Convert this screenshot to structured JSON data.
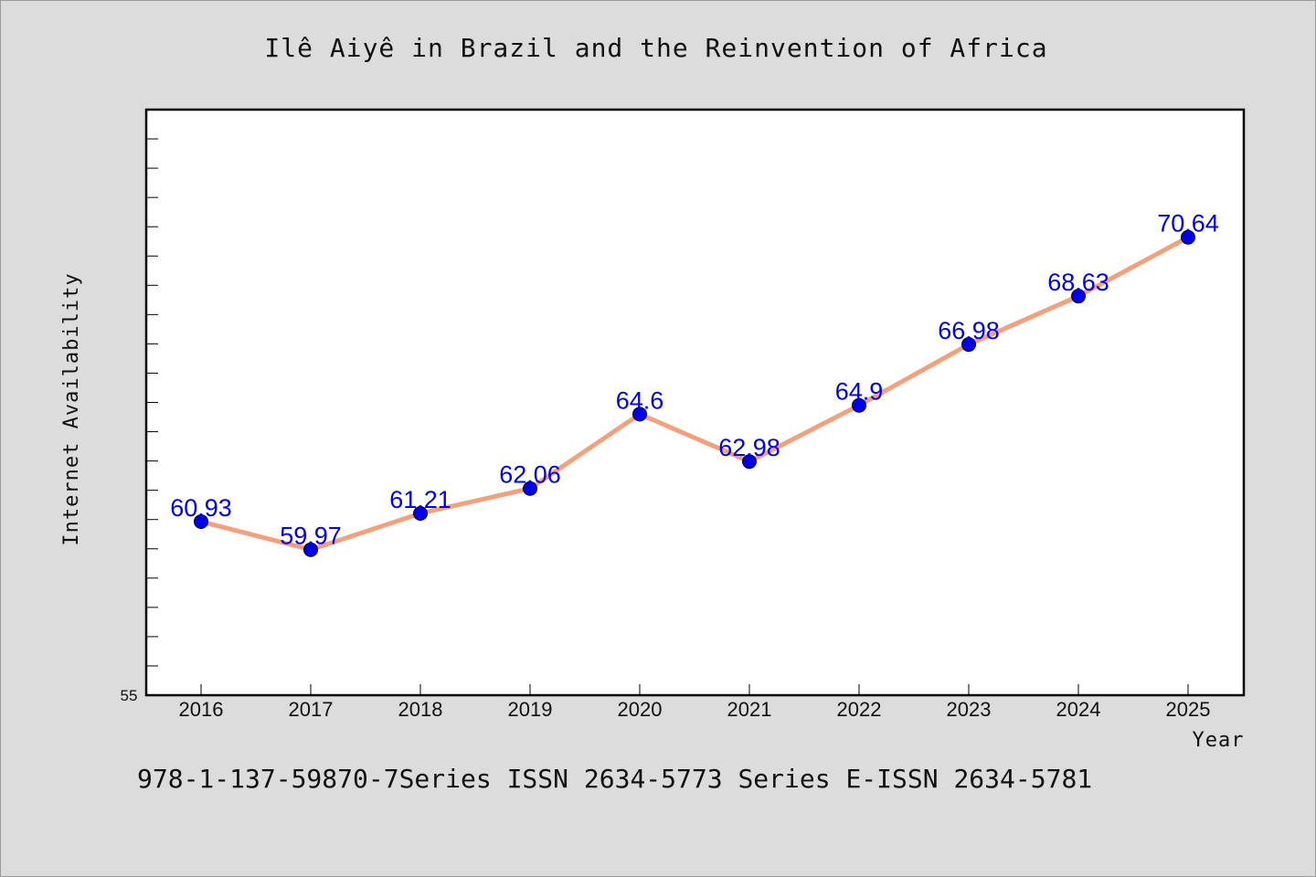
{
  "chart_data": {
    "type": "line",
    "title": "Ilê Aiyê in Brazil and the Reinvention of Africa",
    "xlabel": "Year",
    "ylabel": "Internet Availability",
    "categories": [
      "2016",
      "2017",
      "2018",
      "2019",
      "2020",
      "2021",
      "2022",
      "2023",
      "2024",
      "2025"
    ],
    "series": [
      {
        "values": [
          60.93,
          59.97,
          61.21,
          62.06,
          64.6,
          62.98,
          64.9,
          66.98,
          68.63,
          70.64
        ],
        "labels": [
          "60.93",
          "59.97",
          "61.21",
          "62.06",
          "64.6",
          "62.98",
          "64.9",
          "66.98",
          "68.63",
          "70.64"
        ]
      }
    ],
    "ylim": [
      55,
      75
    ],
    "y_tick_labels": [
      "55"
    ],
    "grid": false,
    "colors": {
      "line": "#f4a07c",
      "marker": "#0000ee",
      "label": "#0000ee",
      "background": "#dcdcdc",
      "plot_background": "#ffffff"
    }
  },
  "footer": {
    "text": "978-1-137-59870-7Series ISSN 2634-5773 Series E-ISSN 2634-5781"
  }
}
